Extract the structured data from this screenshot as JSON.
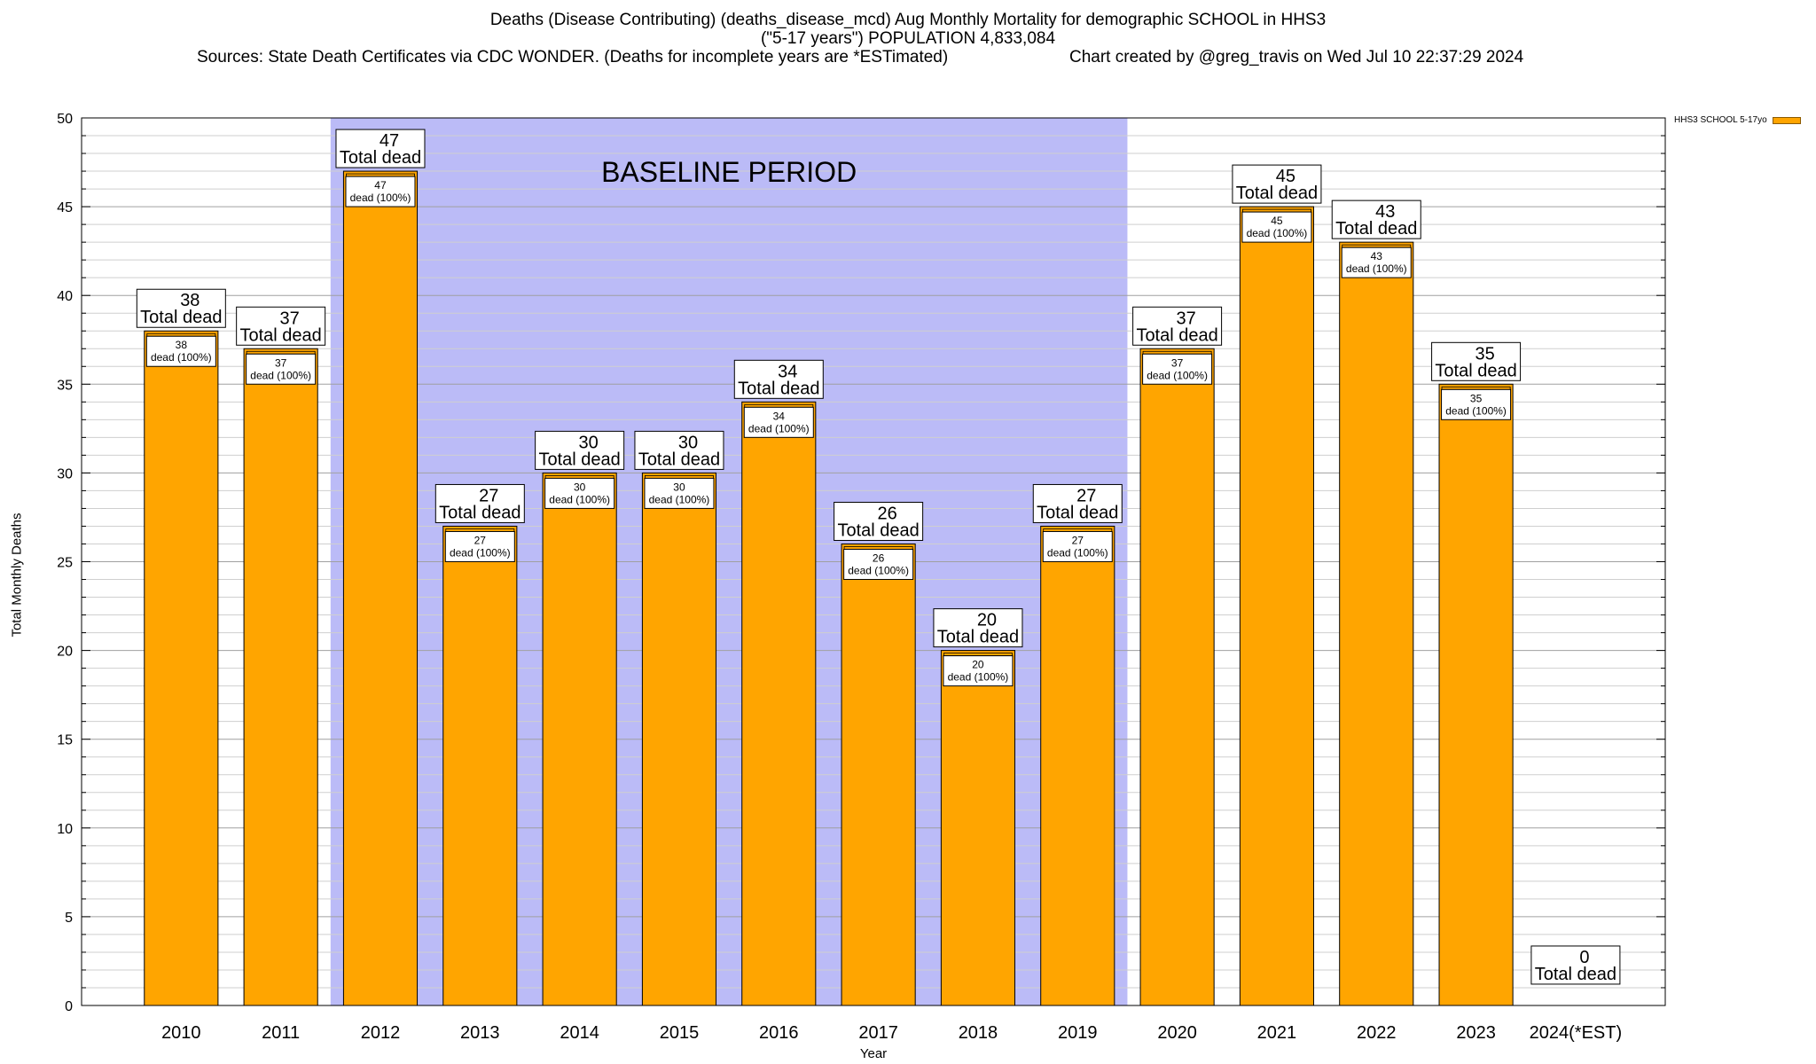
{
  "chart_data": {
    "type": "bar",
    "title": "Deaths (Disease Contributing) (deaths_disease_mcd) Aug Monthly Mortality for demographic SCHOOL in HHS3",
    "subtitle": "(\"5-17 years\") POPULATION 4,833,084",
    "sources": "Sources: State Death Certificates via CDC WONDER. (Deaths for incomplete years are *ESTimated)",
    "credit": "Chart created by @greg_travis on Wed Jul 10 22:37:29 2024",
    "xlabel": "Year",
    "ylabel": "Total Monthly Deaths",
    "ylim": [
      0,
      50
    ],
    "yticks": [
      "0",
      "5",
      "10",
      "15",
      "20",
      "25",
      "30",
      "35",
      "40",
      "45",
      "50"
    ],
    "categories": [
      "2010",
      "2011",
      "2012",
      "2013",
      "2014",
      "2015",
      "2016",
      "2017",
      "2018",
      "2019",
      "2020",
      "2021",
      "2022",
      "2023",
      "2024(*EST)"
    ],
    "series": [
      {
        "name": "HHS3 SCHOOL 5-17yo",
        "values": [
          38,
          37,
          47,
          27,
          30,
          30,
          34,
          26,
          20,
          27,
          37,
          45,
          43,
          35,
          0
        ],
        "color": "#FFA500"
      }
    ],
    "total_label": "Total dead",
    "inner_label_suffix": "dead (100%)",
    "baseline": {
      "label": "BASELINE PERIOD",
      "start": "2012",
      "end": "2019",
      "color": "#BBBBF7"
    },
    "legend_position": "top-right",
    "grid": true
  }
}
